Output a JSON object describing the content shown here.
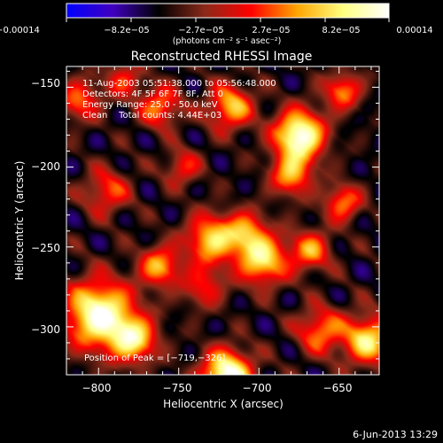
{
  "colorbar": {
    "ticks": [
      "−0.00014",
      "−8.2e−05",
      "−2.7e−05",
      "2.7e−05",
      "8.2e−05",
      "0.00014"
    ],
    "unit_label": "(photons cm⁻² s⁻¹ asec⁻²)",
    "range": [
      -0.00014,
      0.00014
    ],
    "colormap": [
      "#0000ff",
      "#4000c0",
      "#000000",
      "#8a2a1a",
      "#ff0000",
      "#ffa500",
      "#ffff80",
      "#ffffff"
    ]
  },
  "plot": {
    "title": "Reconstructed RHESSI Image",
    "info_lines": [
      "11-Aug-2003 05:51:38.000 to 05:56:48.000",
      "Detectors: 4F 5F 6F 7F 8F, Att 0",
      "Energy Range: 25.0 - 50.0 keV",
      "Clean    Total counts: 4.44E+03"
    ],
    "peak_label": "Position of Peak = [−719,−326]",
    "xlabel": "Heliocentric X (arcsec)",
    "ylabel": "Heliocentric Y (arcsec)",
    "xticks": [
      "−800",
      "−750",
      "−700",
      "−650"
    ],
    "yticks": [
      "−150",
      "−200",
      "−250",
      "−300"
    ]
  },
  "footer": {
    "timestamp": "6-Jun-2013 13:29"
  },
  "chart_data": {
    "type": "heatmap",
    "title": "Reconstructed RHESSI Image",
    "xlabel": "Heliocentric X (arcsec)",
    "ylabel": "Heliocentric Y (arcsec)",
    "xlim": [
      -820,
      -625
    ],
    "ylim": [
      -330,
      -137
    ],
    "x_ticks": [
      -800,
      -750,
      -700,
      -650
    ],
    "y_ticks": [
      -150,
      -200,
      -250,
      -300
    ],
    "color_range": [
      -0.00014,
      0.00014
    ],
    "background_level": -4e-05,
    "sources": [
      {
        "x": -675,
        "y": -180,
        "amp": 0.0002,
        "s": 11
      },
      {
        "x": -680,
        "y": -205,
        "amp": 0.00012,
        "s": 9
      },
      {
        "x": -720,
        "y": -330,
        "amp": 0.0002,
        "s": 11
      },
      {
        "x": -800,
        "y": -292,
        "amp": 0.00019,
        "s": 15
      },
      {
        "x": -778,
        "y": -308,
        "amp": 0.00014,
        "s": 10
      },
      {
        "x": -762,
        "y": -262,
        "amp": 0.00012,
        "s": 9
      },
      {
        "x": -730,
        "y": -245,
        "amp": 0.00014,
        "s": 11
      },
      {
        "x": -735,
        "y": -275,
        "amp": 8e-05,
        "s": 9
      },
      {
        "x": -698,
        "y": -258,
        "amp": 0.00015,
        "s": 11
      },
      {
        "x": -708,
        "y": -240,
        "amp": 0.0001,
        "s": 9
      },
      {
        "x": -668,
        "y": -252,
        "amp": 0.00011,
        "s": 9
      },
      {
        "x": -648,
        "y": -222,
        "amp": 0.00011,
        "s": 8
      },
      {
        "x": -632,
        "y": -308,
        "amp": 0.00015,
        "s": 11
      },
      {
        "x": -662,
        "y": -302,
        "amp": 0.00011,
        "s": 10
      },
      {
        "x": -648,
        "y": -152,
        "amp": 0.00011,
        "s": 8
      },
      {
        "x": -718,
        "y": -162,
        "amp": 0.00013,
        "s": 10
      },
      {
        "x": -762,
        "y": -162,
        "amp": 0.00011,
        "s": 9
      },
      {
        "x": -748,
        "y": -200,
        "amp": 8e-05,
        "s": 8
      },
      {
        "x": -795,
        "y": -215,
        "amp": 9e-05,
        "s": 10
      },
      {
        "x": -812,
        "y": -158,
        "amp": 0.0001,
        "s": 9
      },
      {
        "x": -785,
        "y": -145,
        "amp": 8e-05,
        "s": 8
      }
    ]
  }
}
